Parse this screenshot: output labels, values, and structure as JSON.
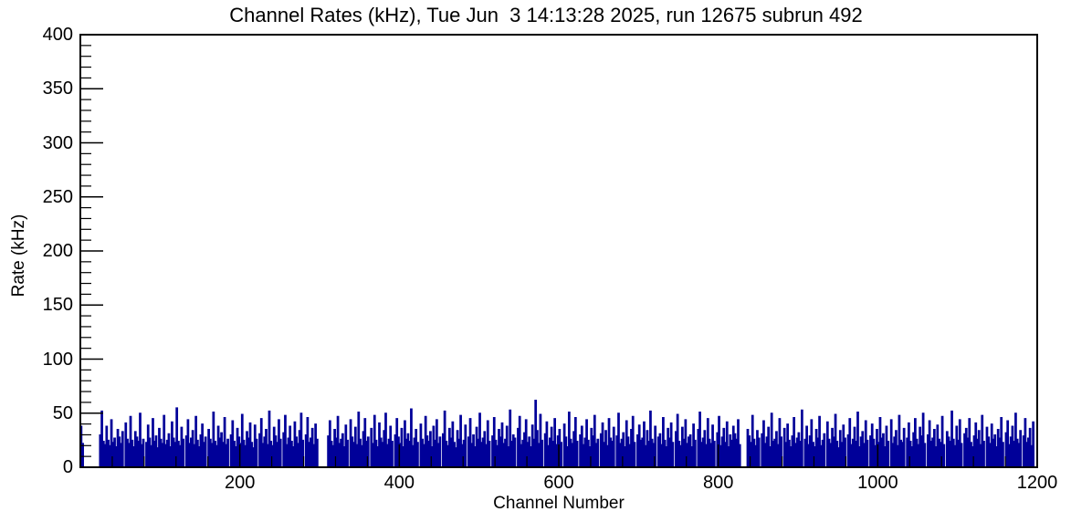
{
  "window": {
    "background": "#ffffff"
  },
  "chart_data": {
    "type": "bar",
    "title": "Channel Rates (kHz), Tue Jun  3 14:13:28 2025, run 12675 subrun 492",
    "xlabel": "Channel Number",
    "ylabel": "Rate (kHz)",
    "xlim": [
      0,
      1200
    ],
    "ylim": [
      0,
      400
    ],
    "xticks": [
      200,
      400,
      600,
      800,
      1000,
      1200
    ],
    "yticks": [
      0,
      50,
      100,
      150,
      200,
      250,
      300,
      350,
      400
    ],
    "x_minor_step": 40,
    "y_minor_step": 10,
    "grid": false,
    "legend": "none",
    "series_color": "#000099",
    "axis_color": "#000000",
    "bin_width_channels": 2,
    "x_start": 0,
    "values": [
      38,
      22,
      0,
      0,
      0,
      0,
      0,
      0,
      0,
      0,
      0,
      0,
      30,
      52,
      24,
      21,
      38,
      25,
      20,
      44,
      23,
      27,
      19,
      35,
      28,
      22,
      33,
      0,
      41,
      26,
      22,
      47,
      25,
      19,
      33,
      28,
      24,
      50,
      21,
      26,
      0,
      23,
      39,
      27,
      20,
      45,
      24,
      29,
      18,
      36,
      26,
      22,
      48,
      21,
      25,
      31,
      19,
      42,
      27,
      23,
      55,
      24,
      20,
      37,
      26,
      0,
      29,
      44,
      22,
      27,
      34,
      21,
      47,
      25,
      19,
      30,
      40,
      23,
      28,
      0,
      35,
      26,
      22,
      51,
      24,
      20,
      38,
      27,
      32,
      23,
      46,
      21,
      26,
      0,
      30,
      43,
      24,
      19,
      36,
      28,
      22,
      49,
      25,
      20,
      33,
      27,
      41,
      23,
      18,
      39,
      26,
      0,
      31,
      45,
      22,
      28,
      35,
      21,
      52,
      24,
      20,
      37,
      29,
      23,
      44,
      26,
      0,
      32,
      48,
      21,
      27,
      38,
      24,
      19,
      42,
      28,
      22,
      34,
      50,
      25,
      0,
      30,
      46,
      23,
      27,
      36,
      21,
      40,
      26,
      0,
      0,
      0,
      0,
      0,
      0,
      29,
      43,
      24,
      20,
      35,
      27,
      47,
      22,
      26,
      31,
      19,
      39,
      25,
      0,
      44,
      28,
      23,
      37,
      21,
      51,
      26,
      20,
      33,
      45,
      24,
      28,
      0,
      36,
      22,
      48,
      25,
      19,
      41,
      27,
      23,
      34,
      50,
      21,
      26,
      38,
      24,
      0,
      30,
      45,
      28,
      22,
      36,
      19,
      43,
      26,
      31,
      24,
      54,
      20,
      27,
      35,
      23,
      0,
      40,
      26,
      21,
      47,
      29,
      24,
      33,
      19,
      38,
      25,
      44,
      22,
      28,
      0,
      31,
      52,
      24,
      20,
      36,
      27,
      42,
      23,
      18,
      34,
      26,
      48,
      21,
      25,
      39,
      0,
      28,
      45,
      22,
      30,
      19,
      37,
      26,
      50,
      23,
      27,
      33,
      21,
      43,
      24,
      0,
      29,
      46,
      25,
      20,
      35,
      28,
      41,
      22,
      26,
      38,
      19,
      53,
      24,
      30,
      27,
      0,
      36,
      47,
      21,
      25,
      32,
      44,
      23,
      28,
      19,
      39,
      26,
      62,
      34,
      22,
      49,
      25,
      0,
      31,
      42,
      20,
      27,
      37,
      24,
      45,
      21,
      29,
      35,
      23,
      0,
      40,
      28,
      19,
      51,
      26,
      22,
      33,
      46,
      24,
      0,
      30,
      38,
      21,
      27,
      44,
      25,
      19,
      36,
      29,
      48,
      22,
      26,
      0,
      31,
      41,
      23,
      34,
      20,
      45,
      27,
      24,
      37,
      0,
      29,
      50,
      22,
      26,
      32,
      19,
      43,
      28,
      21,
      35,
      47,
      23,
      0,
      30,
      39,
      25,
      27,
      42,
      20,
      34,
      24,
      52,
      26,
      22,
      38,
      0,
      28,
      31,
      21,
      46,
      25,
      19,
      36,
      27,
      41,
      23,
      0,
      33,
      49,
      24,
      20,
      37,
      26,
      44,
      22,
      28,
      30,
      19,
      40,
      25,
      0,
      35,
      51,
      23,
      27,
      34,
      21,
      45,
      26,
      22,
      39,
      24,
      0,
      32,
      47,
      20,
      28,
      36,
      23,
      42,
      19,
      30,
      25,
      38,
      31,
      26,
      44,
      21,
      0,
      0,
      0,
      0,
      35,
      29,
      23,
      48,
      26,
      20,
      34,
      27,
      0,
      31,
      43,
      22,
      28,
      37,
      19,
      50,
      24,
      26,
      33,
      21,
      45,
      28,
      0,
      36,
      23,
      40,
      25,
      19,
      29,
      46,
      22,
      27,
      32,
      24,
      53,
      0,
      26,
      38,
      21,
      29,
      44,
      23,
      19,
      35,
      27,
      47,
      20,
      25,
      31,
      0,
      42,
      26,
      22,
      36,
      28,
      49,
      24,
      18,
      34,
      23,
      39,
      27,
      0,
      30,
      45,
      21,
      26,
      37,
      24,
      51,
      19,
      28,
      33,
      22,
      43,
      25,
      0,
      29,
      40,
      26,
      20,
      35,
      23,
      46,
      27,
      31,
      19,
      38,
      24,
      0,
      44,
      22,
      28,
      34,
      20,
      48,
      25,
      23,
      36,
      0,
      27,
      41,
      24,
      19,
      32,
      45,
      26,
      21,
      37,
      29,
      50,
      22,
      0,
      30,
      43,
      24,
      27,
      35,
      19,
      39,
      26,
      23,
      47,
      21,
      0,
      33,
      28,
      24,
      52,
      26,
      20,
      38,
      25,
      44,
      22,
      0,
      31,
      36,
      27,
      45,
      23,
      19,
      29,
      41,
      26,
      34,
      21,
      48,
      24,
      0,
      37,
      28,
      22,
      40,
      26,
      30,
      19,
      35,
      27,
      46,
      23,
      0,
      32,
      43,
      21,
      28,
      38,
      24,
      50,
      26,
      22,
      34,
      0,
      29,
      45,
      23,
      27,
      36,
      20,
      42,
      0,
      0
    ]
  }
}
